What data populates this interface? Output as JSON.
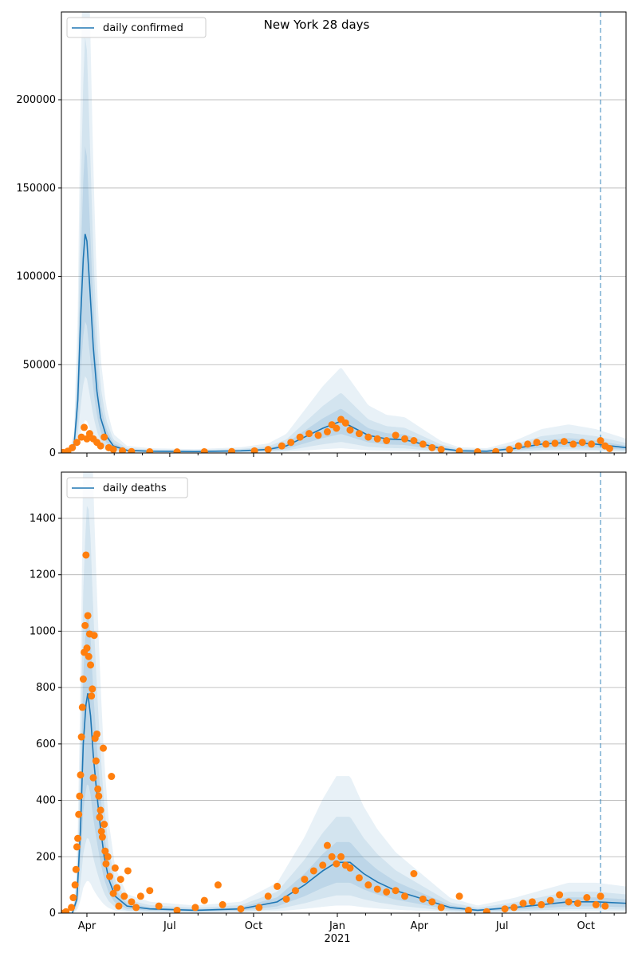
{
  "title": "New York 28 days",
  "x_axis": {
    "ticks": [
      {
        "day": 31,
        "label": "Apr"
      },
      {
        "day": 122,
        "label": "Jul"
      },
      {
        "day": 214,
        "label": "Oct"
      },
      {
        "day": 306,
        "label": "Jan"
      },
      {
        "day": 396,
        "label": "Apr"
      },
      {
        "day": 487,
        "label": "Jul"
      },
      {
        "day": 579,
        "label": "Oct"
      }
    ],
    "minor_days": [
      61,
      92,
      153,
      184,
      245,
      275,
      337,
      365,
      426,
      457,
      518,
      549,
      610
    ],
    "year_label": "2021",
    "day0": "2020-03-01",
    "xlim": [
      3,
      623
    ],
    "forecast_day": 595
  },
  "colors": {
    "model": "#1f77b4",
    "observed": "#ff7f0e",
    "band": "#1f77b4"
  },
  "bands": [
    {
      "lower_factor": 0.15,
      "upper_factor": 2.7,
      "opacity": 0.1
    },
    {
      "lower_factor": 0.35,
      "upper_factor": 1.9,
      "opacity": 0.1
    },
    {
      "lower_factor": 0.6,
      "upper_factor": 1.4,
      "opacity": 0.12
    }
  ],
  "chart_data": [
    {
      "type": "line",
      "legend": "daily confirmed",
      "legend_position": "top-left",
      "ylim": [
        0,
        249700
      ],
      "yticks": [
        0,
        50000,
        100000,
        150000,
        200000
      ],
      "grid": true,
      "model": [
        [
          3,
          0
        ],
        [
          12,
          0
        ],
        [
          17,
          5000
        ],
        [
          21,
          30000
        ],
        [
          24,
          75000
        ],
        [
          27,
          110000
        ],
        [
          29,
          124000
        ],
        [
          31,
          120000
        ],
        [
          34,
          95000
        ],
        [
          38,
          60000
        ],
        [
          42,
          35000
        ],
        [
          46,
          20000
        ],
        [
          52,
          10000
        ],
        [
          60,
          4000
        ],
        [
          75,
          1500
        ],
        [
          100,
          1000
        ],
        [
          150,
          800
        ],
        [
          200,
          1200
        ],
        [
          230,
          2000
        ],
        [
          250,
          4000
        ],
        [
          270,
          9000
        ],
        [
          290,
          14000
        ],
        [
          310,
          18000
        ],
        [
          325,
          14000
        ],
        [
          340,
          10000
        ],
        [
          360,
          8000
        ],
        [
          380,
          7500
        ],
        [
          400,
          5000
        ],
        [
          420,
          2500
        ],
        [
          440,
          1200
        ],
        [
          470,
          1000
        ],
        [
          500,
          2500
        ],
        [
          530,
          5000
        ],
        [
          560,
          6000
        ],
        [
          590,
          5000
        ],
        [
          623,
          3000
        ]
      ],
      "observed": [
        [
          5,
          300
        ],
        [
          10,
          1000
        ],
        [
          15,
          3000
        ],
        [
          20,
          6000
        ],
        [
          25,
          9000
        ],
        [
          28,
          14500
        ],
        [
          31,
          8000
        ],
        [
          34,
          11000
        ],
        [
          38,
          8000
        ],
        [
          42,
          6000
        ],
        [
          46,
          4000
        ],
        [
          50,
          9000
        ],
        [
          55,
          3000
        ],
        [
          60,
          2000
        ],
        [
          70,
          1200
        ],
        [
          80,
          800
        ],
        [
          100,
          700
        ],
        [
          130,
          600
        ],
        [
          160,
          700
        ],
        [
          190,
          800
        ],
        [
          215,
          1200
        ],
        [
          230,
          2000
        ],
        [
          245,
          4000
        ],
        [
          255,
          6000
        ],
        [
          265,
          9000
        ],
        [
          275,
          11000
        ],
        [
          285,
          10000
        ],
        [
          295,
          12000
        ],
        [
          300,
          16000
        ],
        [
          305,
          14000
        ],
        [
          310,
          19000
        ],
        [
          315,
          17000
        ],
        [
          320,
          13000
        ],
        [
          330,
          11000
        ],
        [
          340,
          9000
        ],
        [
          350,
          8000
        ],
        [
          360,
          7000
        ],
        [
          370,
          10000
        ],
        [
          380,
          8000
        ],
        [
          390,
          7000
        ],
        [
          400,
          5000
        ],
        [
          410,
          3000
        ],
        [
          420,
          2000
        ],
        [
          440,
          1000
        ],
        [
          460,
          700
        ],
        [
          480,
          800
        ],
        [
          495,
          2000
        ],
        [
          505,
          4000
        ],
        [
          515,
          5000
        ],
        [
          525,
          6000
        ],
        [
          535,
          5000
        ],
        [
          545,
          5500
        ],
        [
          555,
          6500
        ],
        [
          565,
          5000
        ],
        [
          575,
          6000
        ],
        [
          585,
          5000
        ],
        [
          595,
          7000
        ],
        [
          600,
          4000
        ],
        [
          605,
          2500
        ]
      ]
    },
    {
      "type": "line",
      "legend": "daily deaths",
      "legend_position": "top-left",
      "ylim": [
        0,
        1564
      ],
      "yticks": [
        0,
        200,
        400,
        600,
        800,
        1000,
        1200,
        1400
      ],
      "grid": true,
      "model": [
        [
          3,
          0
        ],
        [
          15,
          0
        ],
        [
          20,
          50
        ],
        [
          24,
          300
        ],
        [
          27,
          600
        ],
        [
          30,
          740
        ],
        [
          32,
          780
        ],
        [
          35,
          700
        ],
        [
          38,
          560
        ],
        [
          42,
          420
        ],
        [
          46,
          300
        ],
        [
          50,
          200
        ],
        [
          55,
          120
        ],
        [
          62,
          60
        ],
        [
          75,
          25
        ],
        [
          100,
          15
        ],
        [
          150,
          10
        ],
        [
          200,
          15
        ],
        [
          240,
          40
        ],
        [
          270,
          100
        ],
        [
          290,
          150
        ],
        [
          305,
          180
        ],
        [
          320,
          180
        ],
        [
          335,
          140
        ],
        [
          350,
          110
        ],
        [
          370,
          80
        ],
        [
          390,
          60
        ],
        [
          410,
          40
        ],
        [
          430,
          20
        ],
        [
          460,
          10
        ],
        [
          500,
          20
        ],
        [
          530,
          30
        ],
        [
          560,
          40
        ],
        [
          590,
          40
        ],
        [
          623,
          35
        ]
      ],
      "observed": [
        [
          3,
          0
        ],
        [
          8,
          5
        ],
        [
          14,
          20
        ],
        [
          16,
          55
        ],
        [
          18,
          100
        ],
        [
          19,
          155
        ],
        [
          20,
          235
        ],
        [
          21,
          265
        ],
        [
          22,
          350
        ],
        [
          23,
          415
        ],
        [
          24,
          490
        ],
        [
          25,
          625
        ],
        [
          26,
          730
        ],
        [
          27,
          830
        ],
        [
          28,
          925
        ],
        [
          29,
          1020
        ],
        [
          30,
          1270
        ],
        [
          31,
          940
        ],
        [
          32,
          1055
        ],
        [
          33,
          910
        ],
        [
          34,
          990
        ],
        [
          35,
          880
        ],
        [
          36,
          770
        ],
        [
          37,
          795
        ],
        [
          38,
          480
        ],
        [
          39,
          985
        ],
        [
          40,
          620
        ],
        [
          41,
          540
        ],
        [
          42,
          635
        ],
        [
          43,
          440
        ],
        [
          44,
          415
        ],
        [
          45,
          340
        ],
        [
          46,
          365
        ],
        [
          47,
          290
        ],
        [
          48,
          270
        ],
        [
          49,
          585
        ],
        [
          50,
          315
        ],
        [
          51,
          220
        ],
        [
          52,
          175
        ],
        [
          54,
          200
        ],
        [
          56,
          130
        ],
        [
          58,
          485
        ],
        [
          60,
          70
        ],
        [
          62,
          160
        ],
        [
          64,
          90
        ],
        [
          66,
          25
        ],
        [
          68,
          120
        ],
        [
          72,
          60
        ],
        [
          76,
          150
        ],
        [
          80,
          40
        ],
        [
          85,
          20
        ],
        [
          90,
          60
        ],
        [
          100,
          80
        ],
        [
          110,
          25
        ],
        [
          130,
          10
        ],
        [
          150,
          20
        ],
        [
          160,
          45
        ],
        [
          175,
          100
        ],
        [
          180,
          30
        ],
        [
          200,
          15
        ],
        [
          220,
          20
        ],
        [
          230,
          60
        ],
        [
          240,
          95
        ],
        [
          250,
          50
        ],
        [
          260,
          80
        ],
        [
          270,
          120
        ],
        [
          280,
          150
        ],
        [
          290,
          170
        ],
        [
          295,
          240
        ],
        [
          300,
          200
        ],
        [
          305,
          175
        ],
        [
          310,
          200
        ],
        [
          315,
          170
        ],
        [
          320,
          160
        ],
        [
          330,
          125
        ],
        [
          340,
          100
        ],
        [
          350,
          85
        ],
        [
          360,
          75
        ],
        [
          370,
          80
        ],
        [
          380,
          60
        ],
        [
          390,
          140
        ],
        [
          400,
          50
        ],
        [
          410,
          40
        ],
        [
          420,
          20
        ],
        [
          440,
          60
        ],
        [
          450,
          10
        ],
        [
          470,
          5
        ],
        [
          490,
          15
        ],
        [
          500,
          20
        ],
        [
          510,
          35
        ],
        [
          520,
          40
        ],
        [
          530,
          30
        ],
        [
          540,
          45
        ],
        [
          550,
          65
        ],
        [
          560,
          40
        ],
        [
          570,
          35
        ],
        [
          580,
          55
        ],
        [
          590,
          30
        ],
        [
          595,
          60
        ],
        [
          600,
          25
        ]
      ]
    }
  ]
}
